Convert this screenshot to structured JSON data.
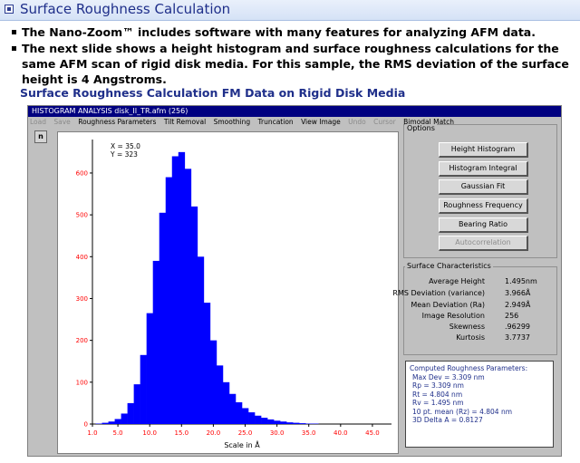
{
  "slide": {
    "title": "Surface Roughness Calculation",
    "bullets": [
      "The Nano-Zoom™ includes software with many features for analyzing AFM data.",
      "The next slide shows a height histogram and surface roughness calculations for the same AFM scan of rigid disk media.  For this sample, the RMS deviation of the surface height is 4 Angstroms."
    ],
    "subtitle": "Surface Roughness Calculation FM Data on Rigid Disk Media"
  },
  "window": {
    "caption": "HISTOGRAM ANALYSIS  disk_II_TR.afm (256)",
    "menu": [
      {
        "label": "Load",
        "enabled": false
      },
      {
        "label": "Save",
        "enabled": false
      },
      {
        "label": "Roughness Parameters",
        "enabled": true
      },
      {
        "label": "Tilt Removal",
        "enabled": true
      },
      {
        "label": "Smoothing",
        "enabled": true
      },
      {
        "label": "Truncation",
        "enabled": true
      },
      {
        "label": "View Image",
        "enabled": true
      },
      {
        "label": "Undo",
        "enabled": false
      },
      {
        "label": "Cursor",
        "enabled": false
      },
      {
        "label": "Bimodal Match",
        "enabled": true
      }
    ],
    "plot_button": "n",
    "cursor_readout": {
      "x": "X = 35.0",
      "y": "Y = 323"
    }
  },
  "options": {
    "label": "Options",
    "buttons": [
      {
        "label": "Height Histogram",
        "enabled": true
      },
      {
        "label": "Histogram Integral",
        "enabled": true
      },
      {
        "label": "Gaussian Fit",
        "enabled": true
      },
      {
        "label": "Roughness Frequency",
        "enabled": true
      },
      {
        "label": "Bearing Ratio",
        "enabled": true
      },
      {
        "label": "Autocorrelation",
        "enabled": false
      }
    ]
  },
  "surface_characteristics": {
    "label": "Surface Characteristics",
    "rows": [
      {
        "label": "Average Height",
        "value": "1.495nm"
      },
      {
        "label": "RMS Deviation (variance)",
        "value": "3.966Å"
      },
      {
        "label": "Mean Deviation (Ra)",
        "value": "2.949Å"
      },
      {
        "label": "Image Resolution",
        "value": "256"
      },
      {
        "label": "Skewness",
        "value": ".96299"
      },
      {
        "label": "Kurtosis",
        "value": "3.7737"
      }
    ]
  },
  "computed": {
    "title": "Computed Roughness Parameters:",
    "lines": [
      "Max Dev = 3.309 nm",
      "Rp = 3.309 nm",
      "Rt = 4.804 nm",
      "Rv = 1.495 nm",
      "10 pt. mean (Rz) = 4.804 nm",
      "3D Delta A = 0.8127"
    ]
  },
  "colors": {
    "bar": "#0000ff",
    "tick": "#ff0000",
    "title": "#1f2f8a"
  },
  "chart_data": {
    "type": "bar",
    "title": "",
    "xlabel": "Scale in Å",
    "ylabel": "",
    "x_ticks": [
      "1.0",
      "5.0",
      "10.0",
      "15.0",
      "20.0",
      "25.0",
      "30.0",
      "35.0",
      "40.0",
      "45.0"
    ],
    "y_ticks": [
      "0",
      "100",
      "200",
      "300",
      "400",
      "500",
      "600"
    ],
    "xlim": [
      1.0,
      48.0
    ],
    "ylim": [
      0,
      680
    ],
    "x": [
      1.0,
      2.0,
      3.0,
      4.0,
      5.0,
      6.0,
      7.0,
      8.0,
      9.0,
      10.0,
      11.0,
      12.0,
      13.0,
      14.0,
      15.0,
      16.0,
      17.0,
      18.0,
      19.0,
      20.0,
      21.0,
      22.0,
      23.0,
      24.0,
      25.0,
      26.0,
      27.0,
      28.0,
      29.0,
      30.0,
      31.0,
      32.0,
      33.0,
      34.0,
      35.0,
      36.0,
      37.0,
      38.0
    ],
    "values": [
      0,
      1,
      3,
      6,
      12,
      25,
      50,
      95,
      165,
      265,
      390,
      505,
      590,
      640,
      650,
      610,
      520,
      400,
      290,
      200,
      140,
      100,
      72,
      52,
      38,
      28,
      20,
      15,
      11,
      8,
      6,
      4,
      3,
      2,
      1,
      1,
      0,
      0
    ],
    "grid": false
  }
}
